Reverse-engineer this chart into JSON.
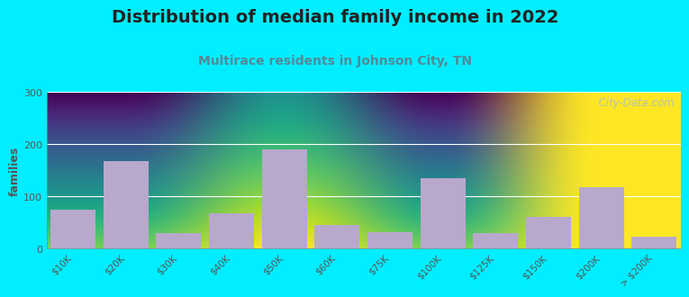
{
  "title": "Distribution of median family income in 2022",
  "subtitle": "Multirace residents in Johnson City, TN",
  "categories": [
    "$10K",
    "$20K",
    "$30K",
    "$40K",
    "$50K",
    "$60K",
    "$75K",
    "$100K",
    "$125K",
    "$150K",
    "$200K",
    "> $200K"
  ],
  "values": [
    75,
    168,
    30,
    68,
    190,
    45,
    32,
    135,
    30,
    60,
    118,
    22
  ],
  "bar_color": "#b8a8cc",
  "background_outer": "#00eeff",
  "plot_bg_top": "#ddeedd",
  "plot_bg_bottom": "#f8fff8",
  "ylabel": "families",
  "ylim": [
    0,
    300
  ],
  "yticks": [
    0,
    100,
    200,
    300
  ],
  "title_fontsize": 14,
  "subtitle_fontsize": 10,
  "title_color": "#222222",
  "subtitle_color": "#558899",
  "watermark_text": "  City-Data.com",
  "watermark_color": "#aabbcc",
  "axis_color": "#888888",
  "tick_color": "#555555"
}
